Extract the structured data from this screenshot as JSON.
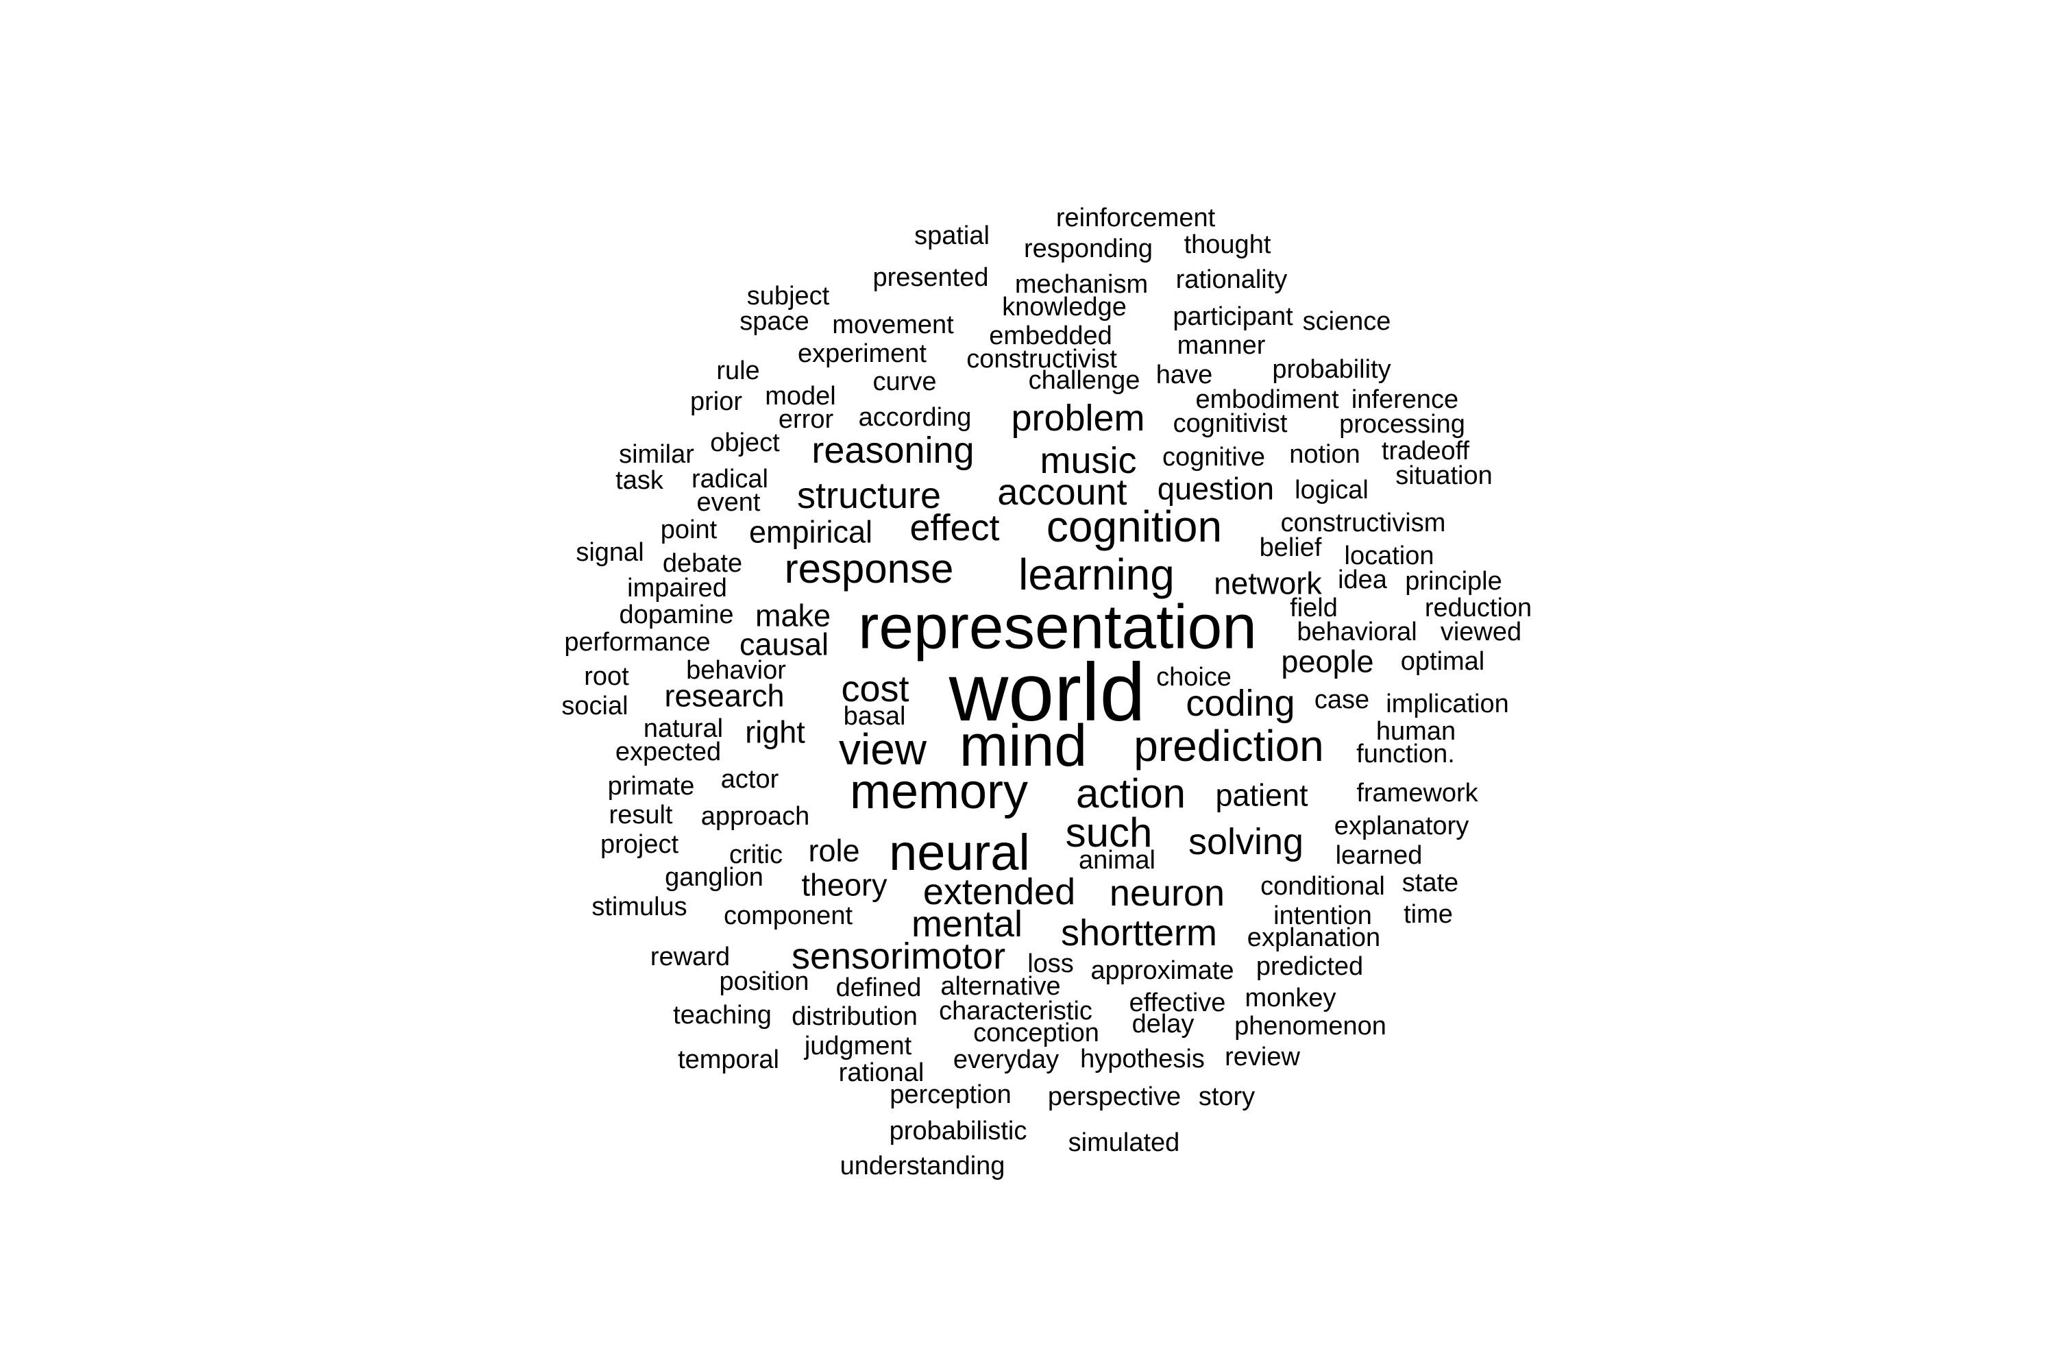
{
  "colors": {
    "background": "#ffffff",
    "text": "#000000"
  },
  "words": [
    {
      "text": "world",
      "weight": 100
    },
    {
      "text": "representation",
      "weight": 78
    },
    {
      "text": "mind",
      "weight": 75
    },
    {
      "text": "neural",
      "weight": 66
    },
    {
      "text": "memory",
      "weight": 64
    },
    {
      "text": "prediction",
      "weight": 58
    },
    {
      "text": "learning",
      "weight": 58
    },
    {
      "text": "cognition",
      "weight": 56
    },
    {
      "text": "view",
      "weight": 56
    },
    {
      "text": "action",
      "weight": 54
    },
    {
      "text": "such",
      "weight": 54
    },
    {
      "text": "response",
      "weight": 54
    },
    {
      "text": "solving",
      "weight": 50
    },
    {
      "text": "problem",
      "weight": 50
    },
    {
      "text": "reasoning",
      "weight": 50
    },
    {
      "text": "music",
      "weight": 50
    },
    {
      "text": "account",
      "weight": 50
    },
    {
      "text": "cost",
      "weight": 50
    },
    {
      "text": "effect",
      "weight": 50
    },
    {
      "text": "coding",
      "weight": 50
    },
    {
      "text": "structure",
      "weight": 50
    },
    {
      "text": "extended",
      "weight": 50
    },
    {
      "text": "neuron",
      "weight": 50
    },
    {
      "text": "mental",
      "weight": 50
    },
    {
      "text": "shortterm",
      "weight": 50
    },
    {
      "text": "sensorimotor",
      "weight": 50
    },
    {
      "text": "question",
      "weight": 45
    },
    {
      "text": "network",
      "weight": 45
    },
    {
      "text": "people",
      "weight": 45
    },
    {
      "text": "research",
      "weight": 45
    },
    {
      "text": "right",
      "weight": 45
    },
    {
      "text": "patient",
      "weight": 45
    },
    {
      "text": "role",
      "weight": 45
    },
    {
      "text": "theory",
      "weight": 45
    },
    {
      "text": "make",
      "weight": 45
    },
    {
      "text": "causal",
      "weight": 45
    },
    {
      "text": "empirical",
      "weight": 45
    },
    {
      "text": "reinforcement",
      "weight": 37
    },
    {
      "text": "spatial",
      "weight": 37
    },
    {
      "text": "responding",
      "weight": 37
    },
    {
      "text": "thought",
      "weight": 37
    },
    {
      "text": "presented",
      "weight": 37
    },
    {
      "text": "mechanism",
      "weight": 37
    },
    {
      "text": "rationality",
      "weight": 37
    },
    {
      "text": "subject",
      "weight": 37
    },
    {
      "text": "knowledge",
      "weight": 37
    },
    {
      "text": "participant",
      "weight": 37
    },
    {
      "text": "science",
      "weight": 37
    },
    {
      "text": "space",
      "weight": 37
    },
    {
      "text": "movement",
      "weight": 37
    },
    {
      "text": "embedded",
      "weight": 37
    },
    {
      "text": "manner",
      "weight": 37
    },
    {
      "text": "experiment",
      "weight": 37
    },
    {
      "text": "constructivist",
      "weight": 37
    },
    {
      "text": "rule",
      "weight": 37
    },
    {
      "text": "probability",
      "weight": 37
    },
    {
      "text": "curve",
      "weight": 37
    },
    {
      "text": "challenge",
      "weight": 37
    },
    {
      "text": "have",
      "weight": 37
    },
    {
      "text": "model",
      "weight": 37
    },
    {
      "text": "embodiment",
      "weight": 37
    },
    {
      "text": "inference",
      "weight": 37
    },
    {
      "text": "prior",
      "weight": 37
    },
    {
      "text": "error",
      "weight": 37
    },
    {
      "text": "according",
      "weight": 37
    },
    {
      "text": "cognitivist",
      "weight": 37
    },
    {
      "text": "processing",
      "weight": 37
    },
    {
      "text": "object",
      "weight": 37
    },
    {
      "text": "similar",
      "weight": 37
    },
    {
      "text": "cognitive",
      "weight": 37
    },
    {
      "text": "notion",
      "weight": 37
    },
    {
      "text": "tradeoff",
      "weight": 37
    },
    {
      "text": "radical",
      "weight": 37
    },
    {
      "text": "task",
      "weight": 37
    },
    {
      "text": "situation",
      "weight": 37
    },
    {
      "text": "event",
      "weight": 37
    },
    {
      "text": "logical",
      "weight": 37
    },
    {
      "text": "constructivism",
      "weight": 37
    },
    {
      "text": "point",
      "weight": 37
    },
    {
      "text": "signal",
      "weight": 37
    },
    {
      "text": "belief",
      "weight": 37
    },
    {
      "text": "location",
      "weight": 37
    },
    {
      "text": "debate",
      "weight": 37
    },
    {
      "text": "idea",
      "weight": 37
    },
    {
      "text": "principle",
      "weight": 37
    },
    {
      "text": "impaired",
      "weight": 37
    },
    {
      "text": "field",
      "weight": 37
    },
    {
      "text": "reduction",
      "weight": 37
    },
    {
      "text": "dopamine",
      "weight": 37
    },
    {
      "text": "behavioral",
      "weight": 37
    },
    {
      "text": "viewed",
      "weight": 37
    },
    {
      "text": "performance",
      "weight": 37
    },
    {
      "text": "optimal",
      "weight": 37
    },
    {
      "text": "behavior",
      "weight": 37
    },
    {
      "text": "root",
      "weight": 37
    },
    {
      "text": "choice",
      "weight": 37
    },
    {
      "text": "case",
      "weight": 37
    },
    {
      "text": "implication",
      "weight": 37
    },
    {
      "text": "social",
      "weight": 37
    },
    {
      "text": "basal",
      "weight": 37
    },
    {
      "text": "human",
      "weight": 37
    },
    {
      "text": "natural",
      "weight": 37
    },
    {
      "text": "function.",
      "weight": 37
    },
    {
      "text": "expected",
      "weight": 37
    },
    {
      "text": "actor",
      "weight": 37
    },
    {
      "text": "primate",
      "weight": 37
    },
    {
      "text": "framework",
      "weight": 37
    },
    {
      "text": "result",
      "weight": 37
    },
    {
      "text": "approach",
      "weight": 37
    },
    {
      "text": "explanatory",
      "weight": 37
    },
    {
      "text": "project",
      "weight": 37
    },
    {
      "text": "critic",
      "weight": 37
    },
    {
      "text": "animal",
      "weight": 37
    },
    {
      "text": "learned",
      "weight": 37
    },
    {
      "text": "ganglion",
      "weight": 37
    },
    {
      "text": "conditional",
      "weight": 37
    },
    {
      "text": "state",
      "weight": 37
    },
    {
      "text": "stimulus",
      "weight": 37
    },
    {
      "text": "component",
      "weight": 37
    },
    {
      "text": "intention",
      "weight": 37
    },
    {
      "text": "time",
      "weight": 37
    },
    {
      "text": "explanation",
      "weight": 37
    },
    {
      "text": "reward",
      "weight": 37
    },
    {
      "text": "loss",
      "weight": 37
    },
    {
      "text": "approximate",
      "weight": 37
    },
    {
      "text": "predicted",
      "weight": 37
    },
    {
      "text": "position",
      "weight": 37
    },
    {
      "text": "defined",
      "weight": 37
    },
    {
      "text": "alternative",
      "weight": 37
    },
    {
      "text": "effective",
      "weight": 37
    },
    {
      "text": "monkey",
      "weight": 37
    },
    {
      "text": "teaching",
      "weight": 37
    },
    {
      "text": "distribution",
      "weight": 37
    },
    {
      "text": "characteristic",
      "weight": 37
    },
    {
      "text": "delay",
      "weight": 37
    },
    {
      "text": "conception",
      "weight": 37
    },
    {
      "text": "phenomenon",
      "weight": 37
    },
    {
      "text": "judgment",
      "weight": 37
    },
    {
      "text": "temporal",
      "weight": 37
    },
    {
      "text": "everyday",
      "weight": 37
    },
    {
      "text": "hypothesis",
      "weight": 37
    },
    {
      "text": "review",
      "weight": 37
    },
    {
      "text": "rational",
      "weight": 37
    },
    {
      "text": "perception",
      "weight": 37
    },
    {
      "text": "perspective",
      "weight": 37
    },
    {
      "text": "story",
      "weight": 37
    },
    {
      "text": "probabilistic",
      "weight": 37
    },
    {
      "text": "simulated",
      "weight": 37
    },
    {
      "text": "understanding",
      "weight": 37
    }
  ]
}
